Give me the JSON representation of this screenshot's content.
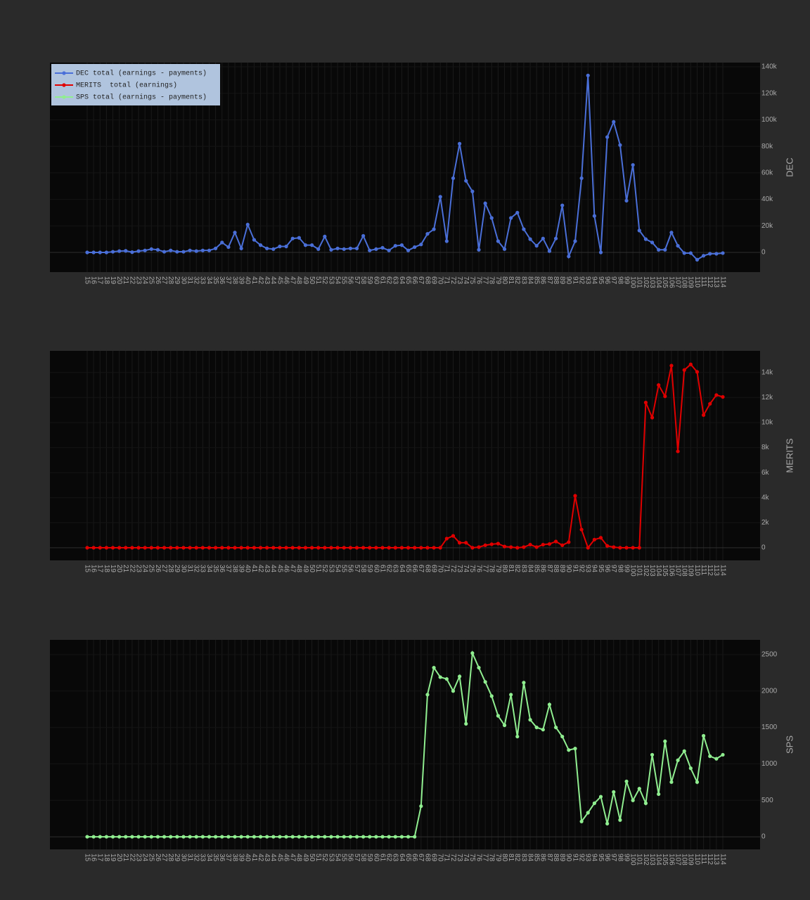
{
  "chart_data": [
    {
      "type": "line",
      "legend": "upper left",
      "grid": true,
      "ylabel": "DEC",
      "categories": [
        15,
        16,
        17,
        18,
        19,
        20,
        21,
        22,
        23,
        24,
        25,
        26,
        27,
        28,
        29,
        30,
        31,
        32,
        33,
        34,
        35,
        36,
        37,
        38,
        39,
        40,
        41,
        42,
        43,
        44,
        45,
        46,
        47,
        48,
        49,
        50,
        51,
        52,
        53,
        54,
        55,
        56,
        57,
        58,
        59,
        60,
        61,
        62,
        63,
        64,
        65,
        66,
        67,
        68,
        69,
        70,
        71,
        72,
        73,
        74,
        75,
        76,
        77,
        78,
        79,
        80,
        81,
        82,
        83,
        84,
        85,
        86,
        87,
        88,
        89,
        90,
        91,
        92,
        93,
        94,
        95,
        96,
        97,
        98,
        99,
        100,
        101,
        102,
        103,
        104,
        105,
        106,
        107,
        108,
        109,
        110,
        111,
        112,
        113,
        114
      ],
      "series": [
        {
          "name": "DEC total (earnings - payments)",
          "color": "#4a6fd8",
          "values": [
            0,
            0,
            0,
            0,
            500,
            1000,
            1200,
            200,
            1000,
            1500,
            2500,
            2000,
            500,
            1500,
            500,
            500,
            1500,
            1000,
            1500,
            1500,
            3000,
            7500,
            4000,
            15000,
            3000,
            21000,
            9500,
            5500,
            3000,
            2500,
            4500,
            4500,
            10500,
            11000,
            5500,
            5500,
            2500,
            12000,
            2000,
            3000,
            2500,
            3000,
            3000,
            12500,
            1500,
            2500,
            3500,
            1500,
            5000,
            5500,
            1500,
            4000,
            6000,
            14000,
            17500,
            42000,
            8500,
            56000,
            82000,
            54000,
            46000,
            2000,
            37000,
            26000,
            8500,
            2500,
            26000,
            30000,
            17500,
            10000,
            5000,
            10500,
            1000,
            10500,
            35500,
            -3000,
            8500,
            56000,
            133500,
            27500,
            0,
            87000,
            98500,
            81000,
            39000,
            66000,
            16500,
            10000,
            7500,
            2000,
            2000,
            15000,
            5000,
            -500,
            -500,
            -5500,
            -2500,
            -1000,
            -1000,
            -500
          ]
        }
      ],
      "ylim": [
        -14850,
        143200
      ],
      "yticks": [
        0,
        {
          "value": 20000,
          "label": "20k"
        },
        {
          "value": 40000,
          "label": "40k"
        },
        {
          "value": 60000,
          "label": "60k"
        },
        {
          "value": 80000,
          "label": "80k"
        },
        {
          "value": 100000,
          "label": "100k"
        },
        {
          "value": 120000,
          "label": "120k"
        },
        {
          "value": 140000,
          "label": "140k"
        }
      ]
    },
    {
      "type": "line",
      "grid": true,
      "ylabel": "MERITS",
      "categories": [
        15,
        16,
        17,
        18,
        19,
        20,
        21,
        22,
        23,
        24,
        25,
        26,
        27,
        28,
        29,
        30,
        31,
        32,
        33,
        34,
        35,
        36,
        37,
        38,
        39,
        40,
        41,
        42,
        43,
        44,
        45,
        46,
        47,
        48,
        49,
        50,
        51,
        52,
        53,
        54,
        55,
        56,
        57,
        58,
        59,
        60,
        61,
        62,
        63,
        64,
        65,
        66,
        67,
        68,
        69,
        70,
        71,
        72,
        73,
        74,
        75,
        76,
        77,
        78,
        79,
        80,
        81,
        82,
        83,
        84,
        85,
        86,
        87,
        88,
        89,
        90,
        91,
        92,
        93,
        94,
        95,
        96,
        97,
        98,
        99,
        100,
        101,
        102,
        103,
        104,
        105,
        106,
        107,
        108,
        109,
        110,
        111,
        112,
        113,
        114
      ],
      "series": [
        {
          "name": "MERITS  total (earnings)",
          "color": "#e00000",
          "values": [
            0,
            0,
            0,
            0,
            0,
            0,
            0,
            0,
            0,
            0,
            0,
            0,
            0,
            0,
            0,
            0,
            0,
            0,
            0,
            0,
            0,
            0,
            0,
            0,
            0,
            0,
            0,
            0,
            0,
            0,
            0,
            0,
            0,
            0,
            0,
            0,
            0,
            0,
            0,
            0,
            0,
            0,
            0,
            0,
            0,
            0,
            0,
            0,
            0,
            0,
            0,
            0,
            0,
            0,
            0,
            0,
            730,
            950,
            400,
            400,
            0,
            50,
            200,
            280,
            330,
            100,
            50,
            0,
            50,
            250,
            50,
            250,
            300,
            500,
            200,
            450,
            4150,
            1450,
            0,
            650,
            800,
            150,
            50,
            0,
            0,
            0,
            0,
            11600,
            10400,
            13000,
            12100,
            14550,
            7700,
            14200,
            14650,
            14050,
            10600,
            11500,
            12200,
            12050
          ]
        }
      ],
      "ylim": [
        -1010,
        15730
      ],
      "yticks": [
        0,
        {
          "value": 2000,
          "label": "2k"
        },
        {
          "value": 4000,
          "label": "4k"
        },
        {
          "value": 6000,
          "label": "6k"
        },
        {
          "value": 8000,
          "label": "8k"
        },
        {
          "value": 10000,
          "label": "10k"
        },
        {
          "value": 12000,
          "label": "12k"
        },
        {
          "value": 14000,
          "label": "14k"
        }
      ]
    },
    {
      "type": "line",
      "grid": true,
      "ylabel": "SPS",
      "categories": [
        15,
        16,
        17,
        18,
        19,
        20,
        21,
        22,
        23,
        24,
        25,
        26,
        27,
        28,
        29,
        30,
        31,
        32,
        33,
        34,
        35,
        36,
        37,
        38,
        39,
        40,
        41,
        42,
        43,
        44,
        45,
        46,
        47,
        48,
        49,
        50,
        51,
        52,
        53,
        54,
        55,
        56,
        57,
        58,
        59,
        60,
        61,
        62,
        63,
        64,
        65,
        66,
        67,
        68,
        69,
        70,
        71,
        72,
        73,
        74,
        75,
        76,
        77,
        78,
        79,
        80,
        81,
        82,
        83,
        84,
        85,
        86,
        87,
        88,
        89,
        90,
        91,
        92,
        93,
        94,
        95,
        96,
        97,
        98,
        99,
        100,
        101,
        102,
        103,
        104,
        105,
        106,
        107,
        108,
        109,
        110,
        111,
        112,
        113,
        114
      ],
      "series": [
        {
          "name": "SPS total (earnings - payments)",
          "color": "#90ee90",
          "values": [
            0,
            0,
            0,
            0,
            0,
            0,
            0,
            0,
            0,
            0,
            0,
            0,
            0,
            0,
            0,
            0,
            0,
            0,
            0,
            0,
            0,
            0,
            0,
            0,
            0,
            0,
            0,
            0,
            0,
            0,
            0,
            0,
            0,
            0,
            0,
            0,
            0,
            0,
            0,
            0,
            0,
            0,
            0,
            0,
            0,
            0,
            0,
            0,
            0,
            0,
            0,
            0,
            420,
            1950,
            2320,
            2190,
            2165,
            2000,
            2200,
            1550,
            2520,
            2320,
            2125,
            1930,
            1660,
            1530,
            1950,
            1375,
            2115,
            1605,
            1500,
            1470,
            1815,
            1500,
            1375,
            1190,
            1210,
            210,
            330,
            460,
            550,
            180,
            615,
            230,
            760,
            500,
            660,
            460,
            1125,
            585,
            1310,
            750,
            1050,
            1175,
            940,
            750,
            1385,
            1105,
            1070,
            1125
          ]
        }
      ],
      "ylim": [
        -173,
        2702
      ],
      "yticks": [
        0,
        500,
        1000,
        1500,
        2000,
        2500
      ]
    }
  ]
}
